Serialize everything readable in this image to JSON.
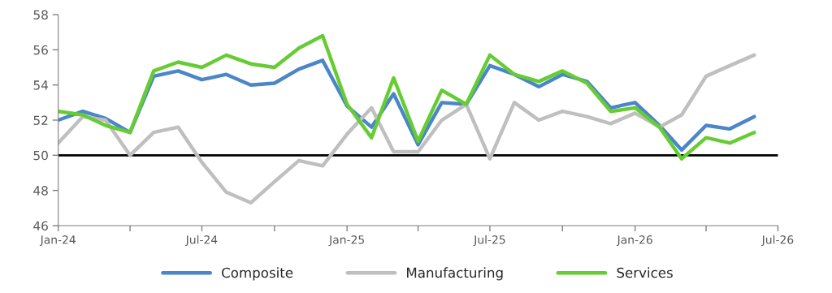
{
  "chart_data": {
    "type": "line",
    "x": [
      "2024-01",
      "2024-02",
      "2024-03",
      "2024-04",
      "2024-05",
      "2024-06",
      "2024-07",
      "2024-08",
      "2024-09",
      "2024-10",
      "2024-11",
      "2024-12",
      "2025-01",
      "2025-02",
      "2025-03",
      "2025-04",
      "2025-05",
      "2025-06",
      "2025-07",
      "2025-08",
      "2025-09",
      "2025-10",
      "2025-11",
      "2025-12",
      "2026-01",
      "2026-02",
      "2026-03",
      "2026-04",
      "2026-05",
      "2026-06"
    ],
    "series": [
      {
        "name": "Composite",
        "color": "#4a86c8",
        "values": [
          52.0,
          52.5,
          52.1,
          51.3,
          54.5,
          54.8,
          54.3,
          54.6,
          54.0,
          54.1,
          54.9,
          55.4,
          52.8,
          51.6,
          53.5,
          50.6,
          53.0,
          52.9,
          55.1,
          54.6,
          53.9,
          54.6,
          54.2,
          52.7,
          53.0,
          51.7,
          50.3,
          51.7,
          51.5,
          52.2
        ]
      },
      {
        "name": "Manufacturing",
        "color": "#bfbfbf",
        "values": [
          50.7,
          52.2,
          52.0,
          50.0,
          51.3,
          51.6,
          49.6,
          47.9,
          47.3,
          48.5,
          49.7,
          49.4,
          51.2,
          52.7,
          50.2,
          50.2,
          52.0,
          52.9,
          49.8,
          53.0,
          52.0,
          52.5,
          52.2,
          51.8,
          52.4,
          51.6,
          52.3,
          54.5,
          55.1,
          55.7
        ]
      },
      {
        "name": "Services",
        "color": "#66cc33",
        "values": [
          52.5,
          52.3,
          51.7,
          51.3,
          54.8,
          55.3,
          55.0,
          55.7,
          55.2,
          55.0,
          56.1,
          56.8,
          52.9,
          51.0,
          54.4,
          50.8,
          53.7,
          52.9,
          55.7,
          54.6,
          54.2,
          54.8,
          54.1,
          52.5,
          52.7,
          51.6,
          49.8,
          51.0,
          50.7,
          51.3
        ]
      }
    ],
    "xlim": [
      "2024-01",
      "2026-07"
    ],
    "xticks": [
      {
        "value": "2024-01",
        "label": "Jan-24"
      },
      {
        "value": "2024-04",
        "label": null
      },
      {
        "value": "2024-07",
        "label": "Jul-24"
      },
      {
        "value": "2024-10",
        "label": null
      },
      {
        "value": "2025-01",
        "label": "Jan-25"
      },
      {
        "value": "2025-04",
        "label": null
      },
      {
        "value": "2025-07",
        "label": "Jul-25"
      },
      {
        "value": "2025-10",
        "label": null
      },
      {
        "value": "2026-01",
        "label": "Jan-26"
      },
      {
        "value": "2026-04",
        "label": null
      },
      {
        "value": "2026-07",
        "label": "Jul-26"
      }
    ],
    "ylim": [
      46,
      58
    ],
    "yticks": [
      46,
      48,
      50,
      52,
      54,
      56,
      58
    ],
    "ref_lines": [
      {
        "axis": "y",
        "value": 50,
        "color": "#000000"
      }
    ],
    "grid": false,
    "legend": "bottom",
    "marker": "none",
    "line_style": "solid"
  }
}
